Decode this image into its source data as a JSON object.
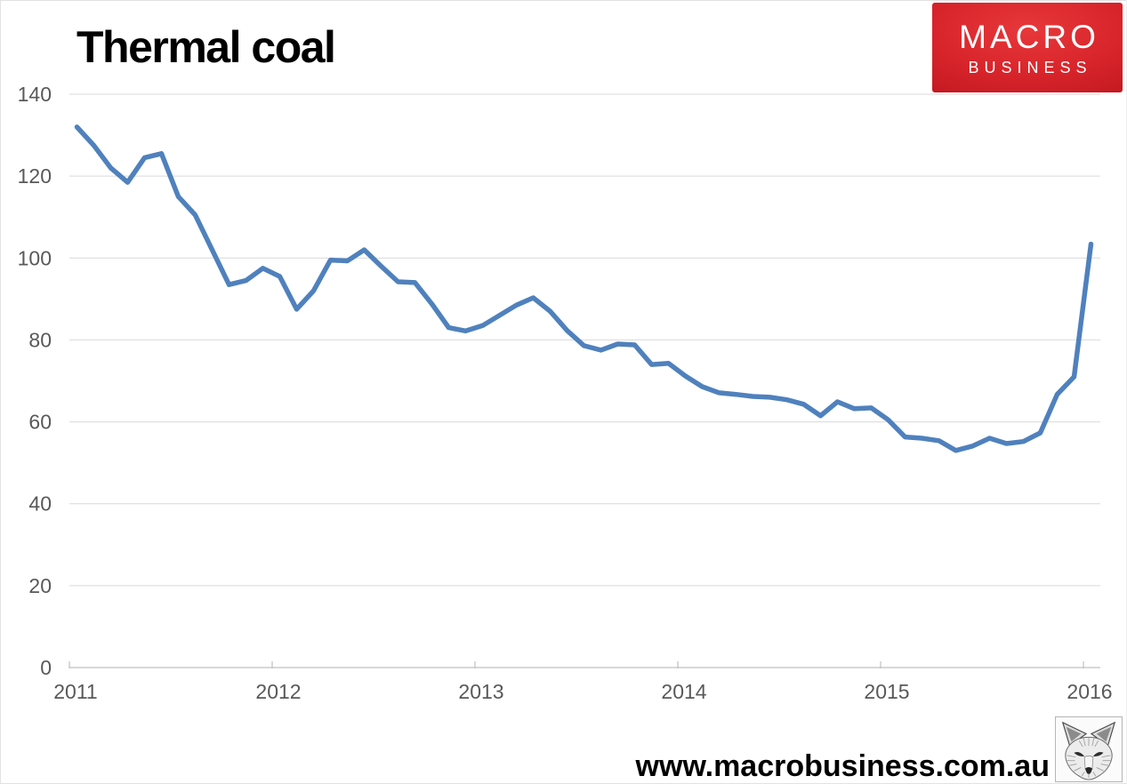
{
  "chart_data": {
    "type": "line",
    "title": "Thermal coal",
    "x_tick_labels": [
      "2011",
      "2012",
      "2013",
      "2014",
      "2015",
      "2016"
    ],
    "points_per_year": 12,
    "x_range_note": "monthly points, Jan 2011 to Jan 2016",
    "values": [
      132,
      127.5,
      122,
      118.5,
      124.5,
      125.5,
      115,
      110.5,
      102,
      93.5,
      94.5,
      97.5,
      95.5,
      87.5,
      92,
      99.5,
      99.3,
      102,
      98,
      94.2,
      94,
      88.8,
      83,
      82.2,
      83.5,
      86,
      88.5,
      90.3,
      87,
      82.3,
      78.6,
      77.5,
      79,
      78.8,
      74,
      74.3,
      71.2,
      68.6,
      67.1,
      66.7,
      66.2,
      66,
      65.4,
      64.3,
      61.5,
      64.9,
      63.2,
      63.4,
      60.5,
      56.3,
      56,
      55.4,
      53,
      54.1,
      56,
      54.7,
      55.2,
      57.3,
      66.7,
      71,
      103.4
    ],
    "y_ticks": [
      0,
      20,
      40,
      60,
      80,
      100,
      120,
      140
    ],
    "ylim": [
      0,
      140
    ],
    "grid": true,
    "legend": "none",
    "line_color": "#4F81BD",
    "gridline_color": "#D9D9D9",
    "axis_line_color": "#BFBFBF",
    "axis_label_color": "#595959"
  },
  "logo": {
    "line1": "MACRO",
    "line2": "BUSINESS",
    "bg_color": "#c11820",
    "text_color": "#ffffff"
  },
  "footer": {
    "url": "www.macrobusiness.com.au"
  },
  "fox": {
    "name": "fox-sketch"
  }
}
